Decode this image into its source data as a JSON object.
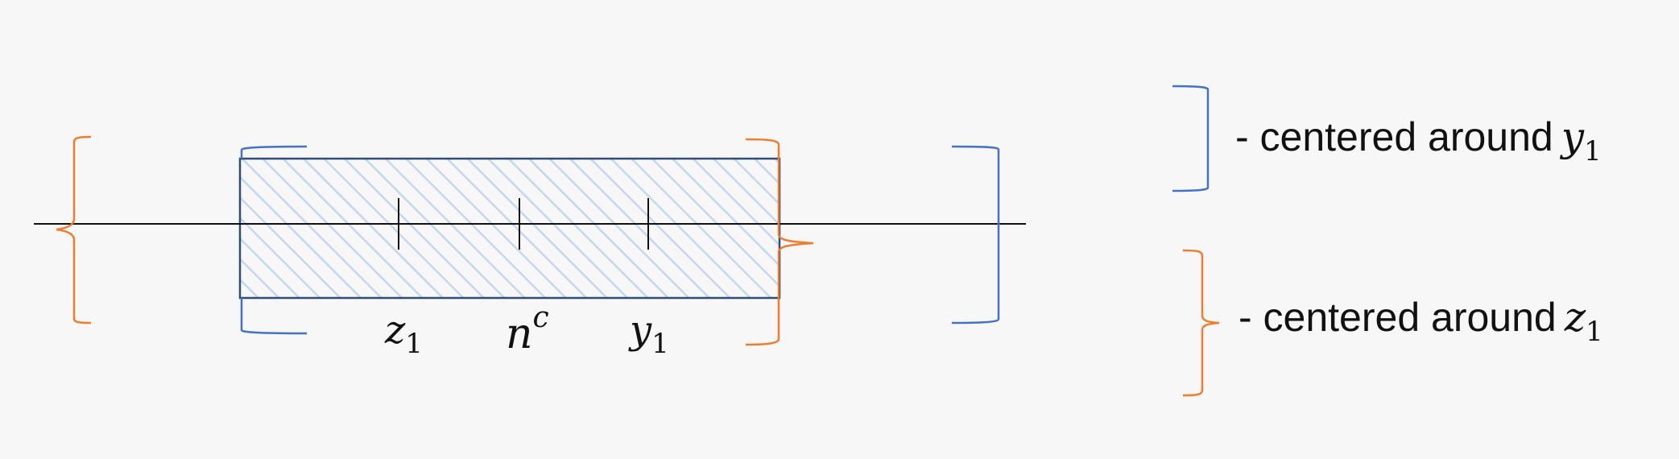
{
  "colors": {
    "background": "#f7f7f7",
    "blue": "#4472c4",
    "orange": "#ed7d31",
    "hatch": "#c5d6ef",
    "axis": "#111111"
  },
  "labels": {
    "z1": {
      "base": "z",
      "sub": "1"
    },
    "nc": {
      "base": "n",
      "sup": "c"
    },
    "y1": {
      "base": "y",
      "sub": "1"
    }
  },
  "legend": {
    "blue_text": "- centered around",
    "blue_var": {
      "base": "y",
      "sub": "1"
    },
    "orange_text": "- centered around",
    "orange_var": {
      "base": "z",
      "sub": "1"
    }
  }
}
